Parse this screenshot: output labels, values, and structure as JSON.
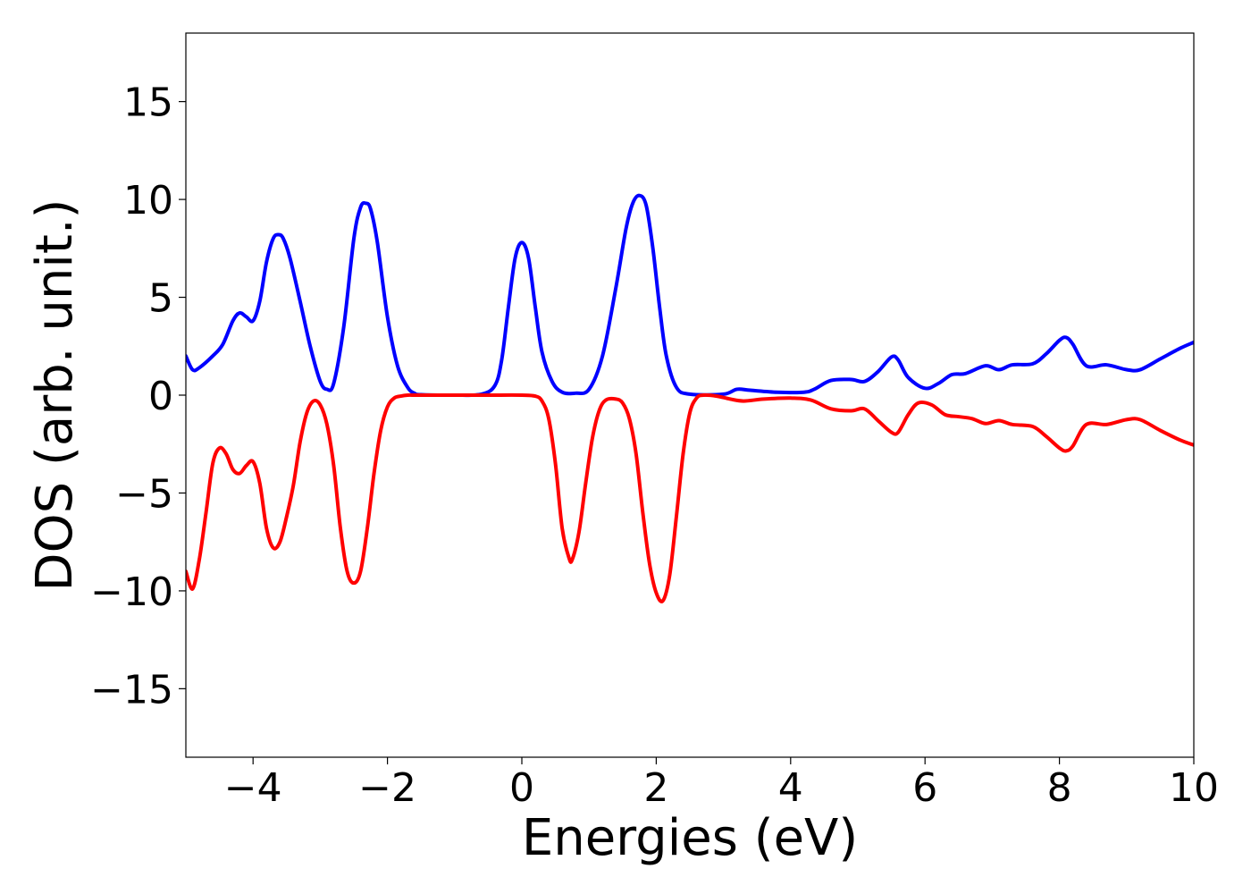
{
  "chart_data": {
    "type": "line",
    "title": "",
    "xlabel": "Energies (eV)",
    "ylabel": "DOS (arb. unit.)",
    "xlim": [
      -5,
      10
    ],
    "ylim": [
      -18.5,
      18.5
    ],
    "xticks": [
      -4,
      -2,
      0,
      2,
      4,
      6,
      8,
      10
    ],
    "xtick_labels": [
      "−4",
      "−2",
      "0",
      "2",
      "4",
      "6",
      "8",
      "10"
    ],
    "yticks": [
      15,
      10,
      5,
      0,
      -5,
      -10,
      -15
    ],
    "ytick_labels": [
      "15",
      "10",
      "5",
      "0",
      "−5",
      "−10",
      "−15"
    ],
    "grid": false,
    "legend": "none",
    "series": [
      {
        "color": "#0000ff",
        "x": [
          -5.0,
          -4.9,
          -4.8,
          -4.6,
          -4.45,
          -4.3,
          -4.2,
          -4.1,
          -4.0,
          -3.9,
          -3.8,
          -3.7,
          -3.62,
          -3.55,
          -3.45,
          -3.3,
          -3.15,
          -3.0,
          -2.9,
          -2.8,
          -2.65,
          -2.5,
          -2.4,
          -2.32,
          -2.25,
          -2.15,
          -2.0,
          -1.85,
          -1.7,
          -1.6,
          -1.5,
          -1.0,
          -0.6,
          -0.4,
          -0.3,
          -0.2,
          -0.1,
          0.0,
          0.1,
          0.2,
          0.3,
          0.45,
          0.6,
          0.8,
          1.0,
          1.2,
          1.4,
          1.55,
          1.65,
          1.75,
          1.85,
          1.95,
          2.05,
          2.15,
          2.3,
          2.5,
          3.0,
          3.2,
          3.4,
          3.8,
          4.2,
          4.35,
          4.6,
          4.9,
          5.1,
          5.3,
          5.5,
          5.6,
          5.75,
          6.0,
          6.2,
          6.4,
          6.6,
          6.9,
          7.1,
          7.3,
          7.6,
          7.8,
          8.0,
          8.1,
          8.2,
          8.4,
          8.7,
          9.0,
          9.2,
          9.5,
          9.8,
          10.0
        ],
        "y": [
          2.0,
          1.3,
          1.4,
          2.0,
          2.6,
          3.8,
          4.2,
          4.0,
          3.8,
          4.8,
          6.8,
          8.0,
          8.2,
          8.0,
          7.0,
          4.8,
          2.5,
          0.7,
          0.3,
          0.6,
          3.5,
          8.0,
          9.6,
          9.8,
          9.5,
          7.8,
          4.0,
          1.5,
          0.4,
          0.1,
          0.02,
          0.0,
          0.05,
          0.5,
          1.8,
          4.5,
          7.0,
          7.8,
          7.0,
          4.5,
          2.2,
          0.7,
          0.15,
          0.1,
          0.3,
          2.0,
          5.5,
          8.5,
          9.8,
          10.2,
          9.7,
          7.5,
          4.5,
          2.0,
          0.4,
          0.05,
          0.05,
          0.3,
          0.25,
          0.15,
          0.15,
          0.3,
          0.75,
          0.8,
          0.7,
          1.2,
          1.95,
          1.8,
          0.9,
          0.35,
          0.6,
          1.05,
          1.1,
          1.5,
          1.3,
          1.55,
          1.6,
          2.1,
          2.8,
          2.95,
          2.6,
          1.5,
          1.55,
          1.3,
          1.3,
          1.85,
          2.4,
          2.7
        ]
      },
      {
        "color": "#ff0000",
        "x": [
          -5.0,
          -4.9,
          -4.8,
          -4.7,
          -4.6,
          -4.5,
          -4.4,
          -4.3,
          -4.2,
          -4.1,
          -4.0,
          -3.9,
          -3.8,
          -3.7,
          -3.6,
          -3.5,
          -3.4,
          -3.3,
          -3.2,
          -3.1,
          -3.0,
          -2.9,
          -2.8,
          -2.7,
          -2.6,
          -2.5,
          -2.4,
          -2.3,
          -2.2,
          -2.1,
          -2.0,
          -1.9,
          -1.8,
          -1.7,
          -1.6,
          -1.5,
          -1.0,
          -0.5,
          0.0,
          0.2,
          0.3,
          0.4,
          0.5,
          0.6,
          0.7,
          0.75,
          0.85,
          0.95,
          1.05,
          1.15,
          1.25,
          1.4,
          1.5,
          1.6,
          1.7,
          1.8,
          1.9,
          2.0,
          2.1,
          2.2,
          2.3,
          2.4,
          2.5,
          2.6,
          2.7,
          2.9,
          3.1,
          3.3,
          3.6,
          4.0,
          4.3,
          4.6,
          4.9,
          5.1,
          5.3,
          5.5,
          5.6,
          5.75,
          5.9,
          6.1,
          6.3,
          6.5,
          6.7,
          6.9,
          7.1,
          7.3,
          7.6,
          7.8,
          8.0,
          8.1,
          8.2,
          8.4,
          8.7,
          9.0,
          9.2,
          9.5,
          9.8,
          10.0
        ],
        "y": [
          -9.0,
          -9.9,
          -8.4,
          -6.0,
          -3.5,
          -2.7,
          -3.0,
          -3.8,
          -4.0,
          -3.6,
          -3.4,
          -4.5,
          -6.8,
          -7.8,
          -7.5,
          -6.2,
          -4.6,
          -2.4,
          -0.9,
          -0.3,
          -0.5,
          -1.5,
          -3.6,
          -6.8,
          -9.0,
          -9.6,
          -9.0,
          -6.8,
          -4.0,
          -1.8,
          -0.6,
          -0.15,
          -0.05,
          0.0,
          0.0,
          0.0,
          0.0,
          0.0,
          0.0,
          -0.05,
          -0.3,
          -1.2,
          -3.5,
          -6.8,
          -8.3,
          -8.4,
          -7.0,
          -4.5,
          -2.2,
          -0.8,
          -0.25,
          -0.2,
          -0.4,
          -1.2,
          -3.0,
          -6.0,
          -8.6,
          -10.1,
          -10.5,
          -9.2,
          -6.2,
          -3.0,
          -0.9,
          -0.15,
          0.0,
          -0.05,
          -0.2,
          -0.3,
          -0.2,
          -0.15,
          -0.25,
          -0.7,
          -0.8,
          -0.7,
          -1.3,
          -1.9,
          -1.9,
          -1.0,
          -0.4,
          -0.5,
          -1.0,
          -1.1,
          -1.2,
          -1.45,
          -1.3,
          -1.5,
          -1.6,
          -2.1,
          -2.7,
          -2.85,
          -2.6,
          -1.5,
          -1.5,
          -1.25,
          -1.25,
          -1.8,
          -2.3,
          -2.55
        ]
      }
    ]
  }
}
